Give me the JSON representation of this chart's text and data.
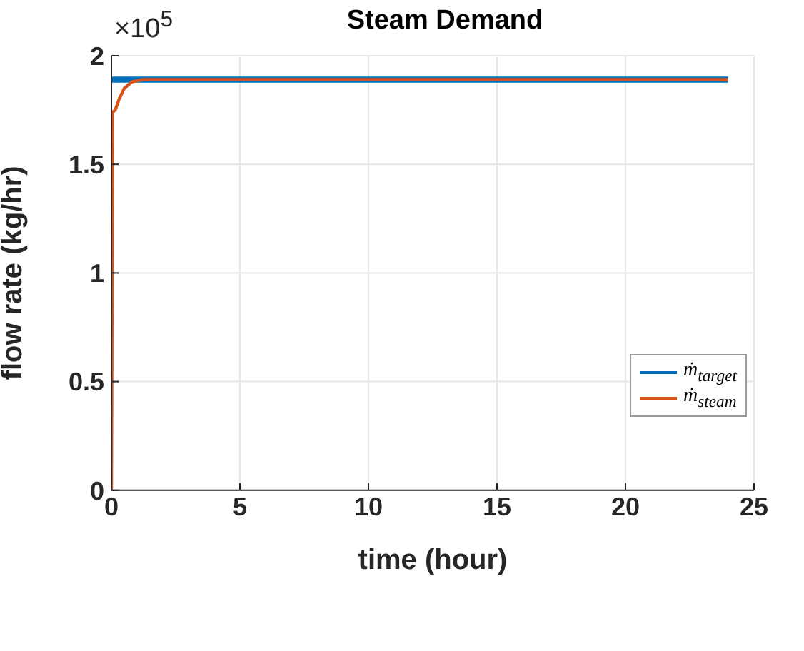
{
  "chart_data": {
    "type": "line",
    "title": "Steam Demand",
    "xlabel": "time (hour)",
    "ylabel": "flow rate (kg/hr)",
    "annotations": [
      "×10$^{5}$"
    ],
    "xlim": [
      0,
      25
    ],
    "xticks": [
      0,
      5,
      10,
      15,
      20,
      25
    ],
    "ylim": [
      0,
      2
    ],
    "yticks": [
      0,
      0.5,
      1,
      1.5,
      2
    ],
    "grid": true,
    "legend": "right",
    "marker": "none",
    "line_style": "solid",
    "series": [
      {
        "name": "ṁ$_{target}$",
        "color": "#0072bd",
        "x": [
          0,
          24
        ],
        "values": [
          1.89,
          1.89
        ]
      },
      {
        "name": "ṁ$_{steam}$",
        "color": "#d95319",
        "x": [
          0,
          0.05,
          0.15,
          0.3,
          0.5,
          0.8,
          1.2,
          24
        ],
        "values": [
          0,
          1.74,
          1.75,
          1.8,
          1.85,
          1.88,
          1.89,
          1.89
        ]
      }
    ]
  }
}
